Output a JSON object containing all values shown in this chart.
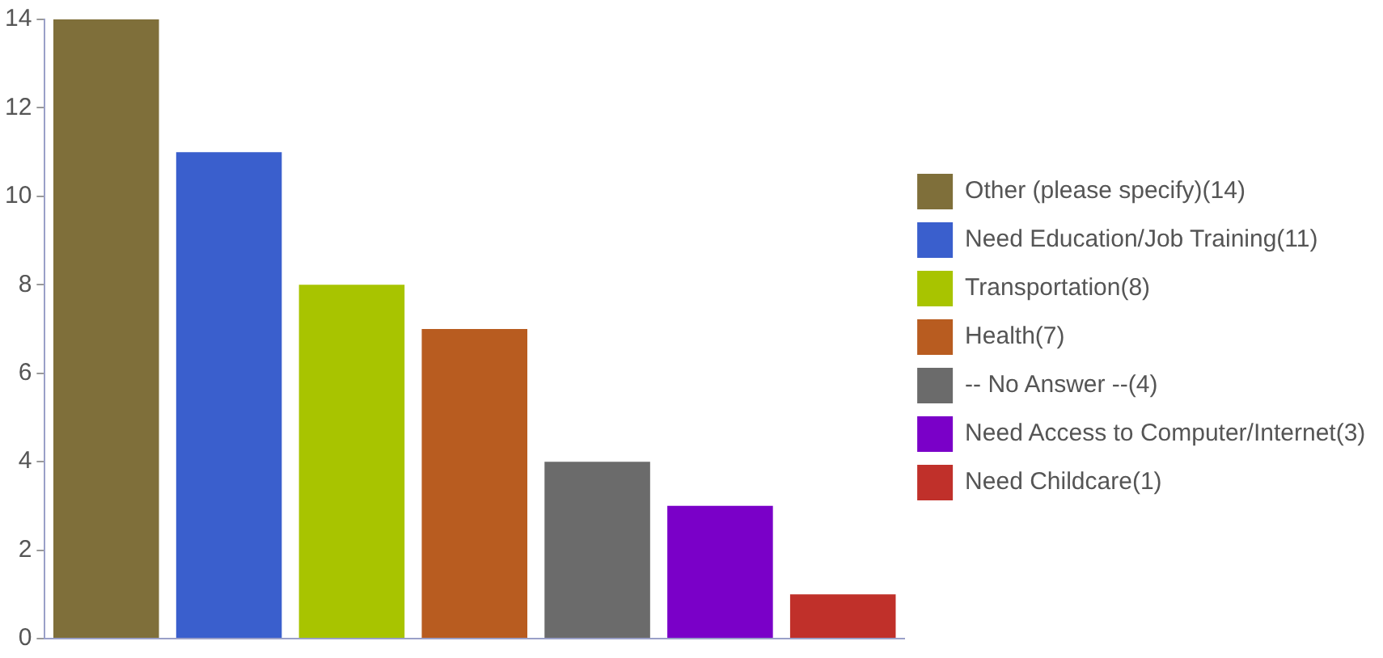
{
  "chart_data": {
    "type": "bar",
    "categories": [
      null
    ],
    "series": [
      {
        "name": "Other (please specify)(14)",
        "color": "#7f6f3a",
        "values": [
          14
        ]
      },
      {
        "name": "Need Education/Job Training(11)",
        "color": "#3a5fcd",
        "values": [
          11
        ]
      },
      {
        "name": "Transportation(8)",
        "color": "#a8c400",
        "values": [
          8
        ]
      },
      {
        "name": "Health(7)",
        "color": "#b85c20",
        "values": [
          7
        ]
      },
      {
        "name": "-- No Answer --(4)",
        "color": "#6b6b6b",
        "values": [
          4
        ]
      },
      {
        "name": "Need Access to Computer/Internet(3)",
        "color": "#7a00c8",
        "values": [
          3
        ]
      },
      {
        "name": "Need Childcare(1)",
        "color": "#c0302a",
        "values": [
          1
        ]
      }
    ],
    "ylim": [
      0,
      14
    ],
    "yticks": [
      0,
      2,
      4,
      6,
      8,
      10,
      12,
      14
    ],
    "grid": false,
    "legend": "right"
  }
}
